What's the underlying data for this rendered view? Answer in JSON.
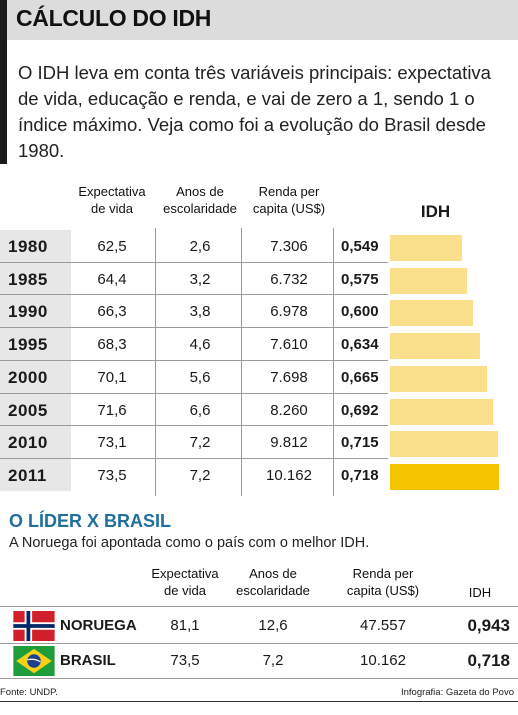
{
  "title": "CÁLCULO DO IDH",
  "intro": "O IDH leva em conta três variáveis principais: expectativa de vida, educação e renda, e vai de zero a 1, sendo 1 o índice máximo. Veja como foi a evolução do Brasil desde 1980.",
  "columns": {
    "expectativa": [
      "Expectativa",
      "de vida"
    ],
    "anos": [
      "Anos de",
      "escolaridade"
    ],
    "renda": [
      "Renda per",
      "capita (US$)"
    ],
    "idh": "IDH"
  },
  "colors": {
    "bar": "#fbe08c",
    "bar_highlight": "#f5c400",
    "section2_title": "#1f6f9f",
    "title_band": "#dcdcdc"
  },
  "chart_data": {
    "type": "bar",
    "title": "CÁLCULO DO IDH",
    "categories": [
      "1980",
      "1985",
      "1990",
      "1995",
      "2000",
      "2005",
      "2010",
      "2011"
    ],
    "series": [
      {
        "name": "IDH",
        "values": [
          0.549,
          0.575,
          0.6,
          0.634,
          0.665,
          0.692,
          0.715,
          0.718
        ]
      }
    ],
    "ylim": [
      0.22,
      0.77
    ],
    "orientation": "horizontal",
    "highlight_category": "2011",
    "rows": [
      {
        "year": "1980",
        "expectativa": "62,5",
        "anos": "2,6",
        "renda": "7.306",
        "idh": "0,549"
      },
      {
        "year": "1985",
        "expectativa": "64,4",
        "anos": "3,2",
        "renda": "6.732",
        "idh": "0,575"
      },
      {
        "year": "1990",
        "expectativa": "66,3",
        "anos": "3,8",
        "renda": "6.978",
        "idh": "0,600"
      },
      {
        "year": "1995",
        "expectativa": "68,3",
        "anos": "4,6",
        "renda": "7.610",
        "idh": "0,634"
      },
      {
        "year": "2000",
        "expectativa": "70,1",
        "anos": "5,6",
        "renda": "7.698",
        "idh": "0,665"
      },
      {
        "year": "2005",
        "expectativa": "71,6",
        "anos": "6,6",
        "renda": "8.260",
        "idh": "0,692"
      },
      {
        "year": "2010",
        "expectativa": "73,1",
        "anos": "7,2",
        "renda": "9.812",
        "idh": "0,715"
      },
      {
        "year": "2011",
        "expectativa": "73,5",
        "anos": "7,2",
        "renda": "10.162",
        "idh": "0,718"
      }
    ]
  },
  "comparison": {
    "title": "O LÍDER X BRASIL",
    "subtitle": "A Noruega foi apontada como o país com o melhor IDH.",
    "columns": {
      "expectativa": [
        "Expectativa",
        "de vida"
      ],
      "anos": [
        "Anos de",
        "escolaridade"
      ],
      "renda": [
        "Renda per",
        "capita (US$)"
      ],
      "idh": "IDH"
    },
    "countries": [
      {
        "name": "NORUEGA",
        "flag_icon": "norway-flag-icon",
        "expectativa": "81,1",
        "anos": "12,6",
        "renda": "47.557",
        "idh": "0,943"
      },
      {
        "name": "BRASIL",
        "flag_icon": "brazil-flag-icon",
        "expectativa": "73,5",
        "anos": "7,2",
        "renda": "10.162",
        "idh": "0,718"
      }
    ]
  },
  "footer": {
    "source": "Fonte: UNDP.",
    "credit": "Infografia: Gazeta do Povo"
  }
}
